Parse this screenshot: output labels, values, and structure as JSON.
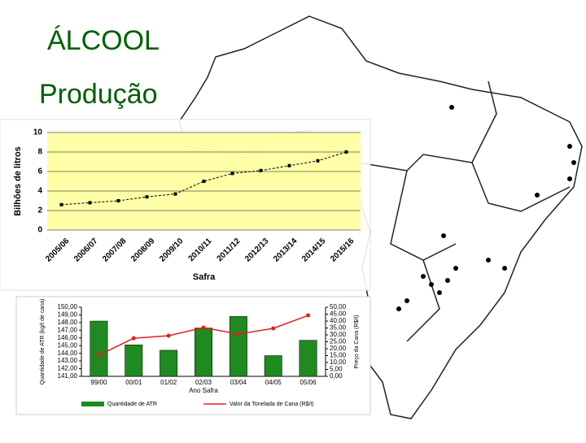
{
  "title": "ÁLCOOL",
  "subtitle": "Produção",
  "chart_data": [
    {
      "type": "line",
      "ylabel": "Bilhões de litros",
      "xlabel": "Safra",
      "categories": [
        "2005/06",
        "2006/07",
        "2007/08",
        "2008/09",
        "2009/10",
        "2010/11",
        "2011/12",
        "2012/13",
        "2013/14",
        "2014/15",
        "2015/16"
      ],
      "values": [
        2.6,
        2.8,
        3.0,
        3.4,
        3.7,
        5.0,
        5.8,
        6.1,
        6.6,
        7.1,
        8.0
      ],
      "color": "#000000",
      "ylim": [
        0,
        10
      ],
      "yticks": [
        0,
        2,
        4,
        6,
        8,
        10
      ],
      "grid": true
    },
    {
      "type": "bar",
      "xlabel": "Ano Safra",
      "ylabel": "Quantidade de ATR (kg/t de cana)",
      "y2label": "Preço da Cana (R$/t)",
      "categories": [
        "99/00",
        "00/01",
        "01/02",
        "02/03",
        "03/04",
        "04/05",
        "05/06"
      ],
      "series": [
        {
          "name": "Quantidade de ATR",
          "color": "#1f8a1f",
          "type": "bar",
          "values": [
            148.2,
            145.1,
            144.4,
            147.3,
            148.8,
            143.7,
            145.7
          ]
        },
        {
          "name": "Valor da Tonelada de Cana (R$/t)",
          "color": "#e02020",
          "type": "line",
          "axis": "y2",
          "values": [
            15.3,
            27.6,
            29.4,
            35.3,
            30.6,
            34.7,
            44.1
          ]
        }
      ],
      "ylim": [
        141,
        150
      ],
      "yticks": [
        {
          "value": 141,
          "label": "141,00"
        },
        {
          "value": 142,
          "label": "142,00"
        },
        {
          "value": 143,
          "label": "143,00"
        },
        {
          "value": 144,
          "label": "144,00"
        },
        {
          "value": 145,
          "label": "145,00"
        },
        {
          "value": 146,
          "label": "146,00"
        },
        {
          "value": 147,
          "label": "147,00"
        },
        {
          "value": 148,
          "label": "148,00"
        },
        {
          "value": 149,
          "label": "149,00"
        },
        {
          "value": 150,
          "label": "150,00"
        }
      ],
      "y2lim": [
        0,
        50
      ],
      "y2ticks": [
        {
          "value": 0,
          "label": "0,00"
        },
        {
          "value": 5,
          "label": "5,00"
        },
        {
          "value": 10,
          "label": "10,00"
        },
        {
          "value": 15,
          "label": "15,00"
        },
        {
          "value": 20,
          "label": "20,00"
        },
        {
          "value": 25,
          "label": "25,00"
        },
        {
          "value": 30,
          "label": "30,00"
        },
        {
          "value": 35,
          "label": "35,00"
        },
        {
          "value": 40,
          "label": "40,00"
        },
        {
          "value": 45,
          "label": "45,00"
        },
        {
          "value": 50,
          "label": "50,00"
        }
      ]
    }
  ]
}
